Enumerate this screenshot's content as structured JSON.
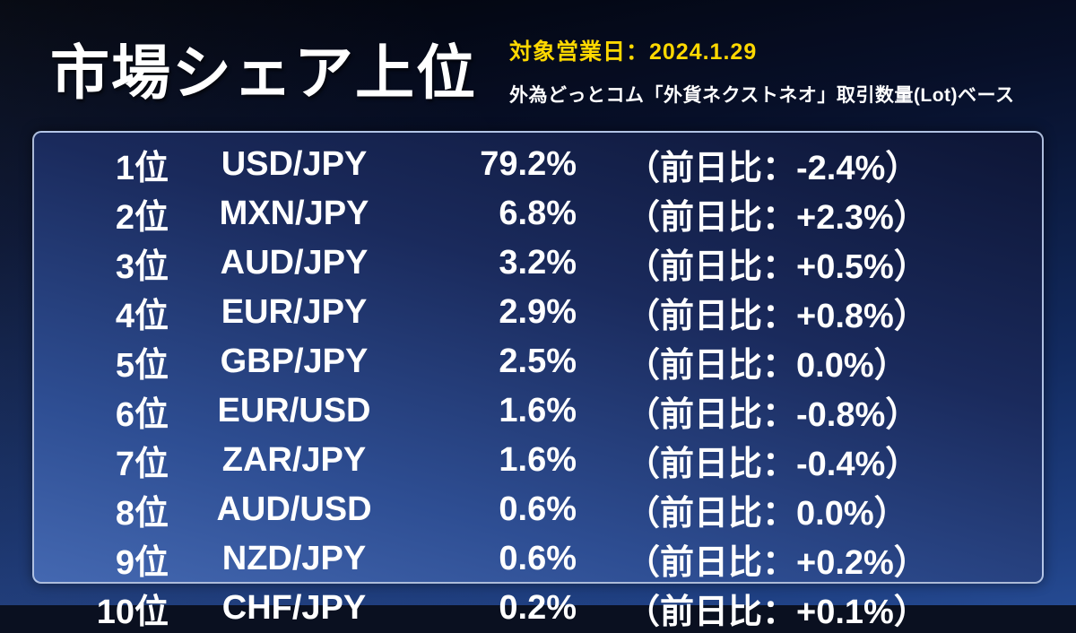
{
  "header": {
    "title": "市場シェア上位",
    "target_date": "対象営業日：2024.1.29",
    "subtitle": "外為どっとコム「外貨ネクストネオ」取引数量(Lot)ベース"
  },
  "colors": {
    "date_text": "#ffd800",
    "panel_border": "#c8d7f2",
    "panel_gradient_top": "#0d1535",
    "panel_gradient_bottom": "#4468b1",
    "background_top": "#020308",
    "background_bottom": "#254a92",
    "text": "#ffffff"
  },
  "chart_data": {
    "type": "table",
    "title": "市場シェア上位",
    "rows": [
      {
        "rank": "1位",
        "pair": "USD/JPY",
        "share": "79.2%",
        "change": "（前日比：-2.4%）",
        "share_value": 79.2,
        "change_value": -2.4
      },
      {
        "rank": "2位",
        "pair": "MXN/JPY",
        "share": "6.8%",
        "change": "（前日比：+2.3%）",
        "share_value": 6.8,
        "change_value": 2.3
      },
      {
        "rank": "3位",
        "pair": "AUD/JPY",
        "share": "3.2%",
        "change": "（前日比：+0.5%）",
        "share_value": 3.2,
        "change_value": 0.5
      },
      {
        "rank": "4位",
        "pair": "EUR/JPY",
        "share": "2.9%",
        "change": "（前日比：+0.8%）",
        "share_value": 2.9,
        "change_value": 0.8
      },
      {
        "rank": "5位",
        "pair": "GBP/JPY",
        "share": "2.5%",
        "change": "（前日比：0.0%）",
        "share_value": 2.5,
        "change_value": 0.0
      },
      {
        "rank": "6位",
        "pair": "EUR/USD",
        "share": "1.6%",
        "change": "（前日比：-0.8%）",
        "share_value": 1.6,
        "change_value": -0.8
      },
      {
        "rank": "7位",
        "pair": "ZAR/JPY",
        "share": "1.6%",
        "change": "（前日比：-0.4%）",
        "share_value": 1.6,
        "change_value": -0.4
      },
      {
        "rank": "8位",
        "pair": "AUD/USD",
        "share": "0.6%",
        "change": "（前日比：0.0%）",
        "share_value": 0.6,
        "change_value": 0.0
      },
      {
        "rank": "9位",
        "pair": "NZD/JPY",
        "share": "0.6%",
        "change": "（前日比：+0.2%）",
        "share_value": 0.6,
        "change_value": 0.2
      },
      {
        "rank": "10位",
        "pair": "CHF/JPY",
        "share": "0.2%",
        "change": "（前日比：+0.1%）",
        "share_value": 0.2,
        "change_value": 0.1
      }
    ]
  }
}
